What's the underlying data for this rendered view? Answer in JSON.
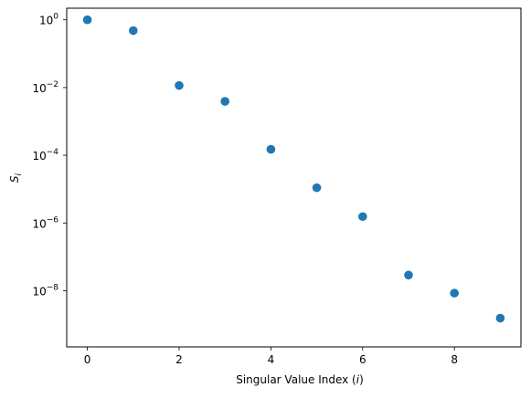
{
  "chart_data": {
    "type": "scatter",
    "xlabel": "Singular Value Index ($i$)",
    "xlabel_parts": {
      "text": "Singular Value Index (",
      "var": "i",
      "close": ")"
    },
    "ylabel": "$S_i$",
    "ylabel_parts": {
      "base": "S",
      "sub": "i"
    },
    "xlim": [
      -0.45,
      9.45
    ],
    "ylim": [
      2.2e-10,
      2.2
    ],
    "yscale": "log",
    "xticks": [
      0,
      2,
      4,
      6,
      8
    ],
    "yticks": [
      {
        "base": "10",
        "exp": "0",
        "value": 1
      },
      {
        "base": "10",
        "exp": "−2",
        "value": 0.01
      },
      {
        "base": "10",
        "exp": "−4",
        "value": 0.0001
      },
      {
        "base": "10",
        "exp": "−6",
        "value": 1e-06
      },
      {
        "base": "10",
        "exp": "−8",
        "value": 1e-08
      }
    ],
    "grid": false,
    "marker_color": "#1f77b4",
    "series": [
      {
        "x": [
          0,
          1,
          2,
          3,
          4,
          5,
          6,
          7,
          8,
          9
        ],
        "y": [
          1.0,
          0.48,
          0.0115,
          0.0039,
          0.00015,
          1.1e-05,
          1.55e-06,
          2.9e-08,
          8.5e-09,
          1.55e-09
        ]
      }
    ]
  }
}
